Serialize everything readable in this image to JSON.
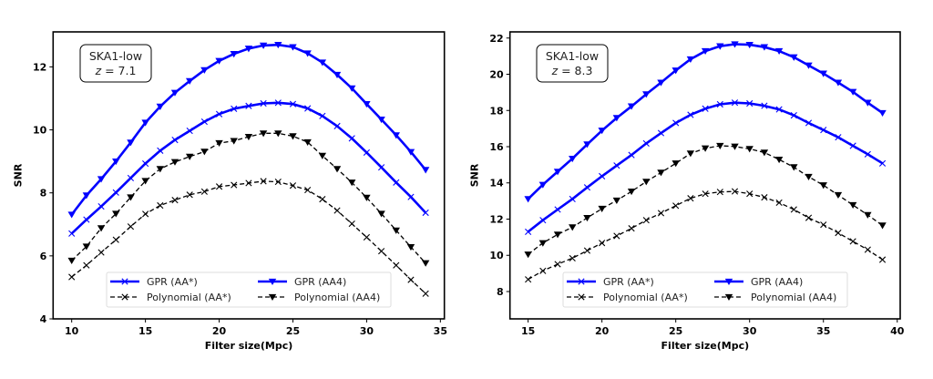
{
  "chart_data": [
    {
      "type": "line",
      "xlabel": "Filter size(Mpc)",
      "ylabel": "SNR",
      "xlim": [
        8.74,
        35.27
      ],
      "ylim": [
        4,
        13.11
      ],
      "xticks": [
        10,
        15,
        20,
        25,
        30,
        35
      ],
      "yticks": [
        4,
        6,
        8,
        10,
        12
      ],
      "grid": false,
      "legend_placement": "lower-center",
      "annotation": {
        "line1": "SKA1-low",
        "z_symbol": "z",
        "line2": " = 7.1"
      },
      "x": [
        10,
        11,
        12,
        13,
        14,
        15,
        16,
        17,
        18,
        19,
        20,
        21,
        22,
        23,
        24,
        25,
        26,
        27,
        28,
        29,
        30,
        31,
        32,
        33,
        34
      ],
      "series": [
        {
          "name": "GPR (AA*)",
          "color": "#0000ff",
          "style": "solid",
          "marker": "x",
          "values": [
            6.71,
            7.15,
            7.57,
            8.01,
            8.47,
            8.93,
            9.34,
            9.68,
            9.97,
            10.26,
            10.5,
            10.67,
            10.76,
            10.84,
            10.86,
            10.82,
            10.68,
            10.44,
            10.12,
            9.73,
            9.28,
            8.81,
            8.33,
            7.87,
            7.37
          ]
        },
        {
          "name": "GPR (AA4)",
          "color": "#0000ff",
          "style": "solid",
          "marker": "triangle-down",
          "values": [
            7.31,
            7.92,
            8.44,
            9.0,
            9.6,
            10.23,
            10.74,
            11.18,
            11.55,
            11.9,
            12.19,
            12.41,
            12.58,
            12.68,
            12.7,
            12.63,
            12.43,
            12.14,
            11.75,
            11.32,
            10.82,
            10.33,
            9.83,
            9.3,
            8.73
          ]
        },
        {
          "name": "Polynomial (AA*)",
          "color": "#000000",
          "style": "dashed",
          "marker": "x",
          "values": [
            5.33,
            5.7,
            6.11,
            6.51,
            6.93,
            7.33,
            7.6,
            7.77,
            7.94,
            8.04,
            8.2,
            8.25,
            8.31,
            8.37,
            8.35,
            8.23,
            8.09,
            7.8,
            7.44,
            7.02,
            6.59,
            6.15,
            5.7,
            5.24,
            4.8
          ]
        },
        {
          "name": "Polynomial (AA4)",
          "color": "#000000",
          "style": "dashed",
          "marker": "triangle-down",
          "values": [
            5.85,
            6.3,
            6.88,
            7.34,
            7.86,
            8.38,
            8.76,
            8.98,
            9.15,
            9.31,
            9.58,
            9.65,
            9.78,
            9.89,
            9.89,
            9.8,
            9.61,
            9.18,
            8.76,
            8.33,
            7.85,
            7.34,
            6.81,
            6.28,
            5.77
          ]
        }
      ]
    },
    {
      "type": "line",
      "xlabel": "Filter size(Mpc)",
      "ylabel": "SNR",
      "xlim": [
        13.77,
        40.2
      ],
      "ylim": [
        6.49,
        22.34
      ],
      "xticks": [
        15,
        20,
        25,
        30,
        35,
        40
      ],
      "yticks": [
        8,
        10,
        12,
        14,
        16,
        18,
        20,
        22
      ],
      "grid": false,
      "legend_placement": "lower-center",
      "annotation": {
        "line1": "SKA1-low",
        "z_symbol": "z",
        "line2": " = 8.3"
      },
      "x": [
        15,
        16,
        17,
        18,
        19,
        20,
        21,
        22,
        23,
        24,
        25,
        26,
        27,
        28,
        29,
        30,
        31,
        32,
        33,
        34,
        35,
        36,
        37,
        38,
        39
      ],
      "series": [
        {
          "name": "GPR (AA*)",
          "color": "#0000ff",
          "style": "solid",
          "marker": "x",
          "values": [
            11.3,
            11.94,
            12.53,
            13.11,
            13.75,
            14.37,
            14.96,
            15.54,
            16.18,
            16.75,
            17.31,
            17.76,
            18.1,
            18.34,
            18.43,
            18.39,
            18.26,
            18.06,
            17.73,
            17.31,
            16.92,
            16.52,
            16.05,
            15.58,
            15.08
          ]
        },
        {
          "name": "GPR (AA4)",
          "color": "#0000ff",
          "style": "solid",
          "marker": "triangle-down",
          "values": [
            13.11,
            13.9,
            14.62,
            15.34,
            16.13,
            16.89,
            17.59,
            18.23,
            18.9,
            19.54,
            20.21,
            20.83,
            21.28,
            21.55,
            21.66,
            21.63,
            21.5,
            21.28,
            20.94,
            20.49,
            20.04,
            19.54,
            19.03,
            18.43,
            17.86
          ]
        },
        {
          "name": "Polynomial (AA*)",
          "color": "#000000",
          "style": "dashed",
          "marker": "x",
          "values": [
            8.67,
            9.14,
            9.51,
            9.84,
            10.26,
            10.68,
            11.07,
            11.49,
            11.94,
            12.33,
            12.74,
            13.15,
            13.4,
            13.5,
            13.53,
            13.4,
            13.2,
            12.91,
            12.53,
            12.07,
            11.69,
            11.24,
            10.77,
            10.31,
            9.76
          ]
        },
        {
          "name": "Polynomial (AA4)",
          "color": "#000000",
          "style": "dashed",
          "marker": "triangle-down",
          "values": [
            10.05,
            10.68,
            11.15,
            11.55,
            12.07,
            12.58,
            13.03,
            13.53,
            14.07,
            14.57,
            15.08,
            15.63,
            15.91,
            16.05,
            16.01,
            15.88,
            15.68,
            15.29,
            14.87,
            14.34,
            13.87,
            13.33,
            12.78,
            12.23,
            11.65
          ]
        }
      ]
    }
  ]
}
